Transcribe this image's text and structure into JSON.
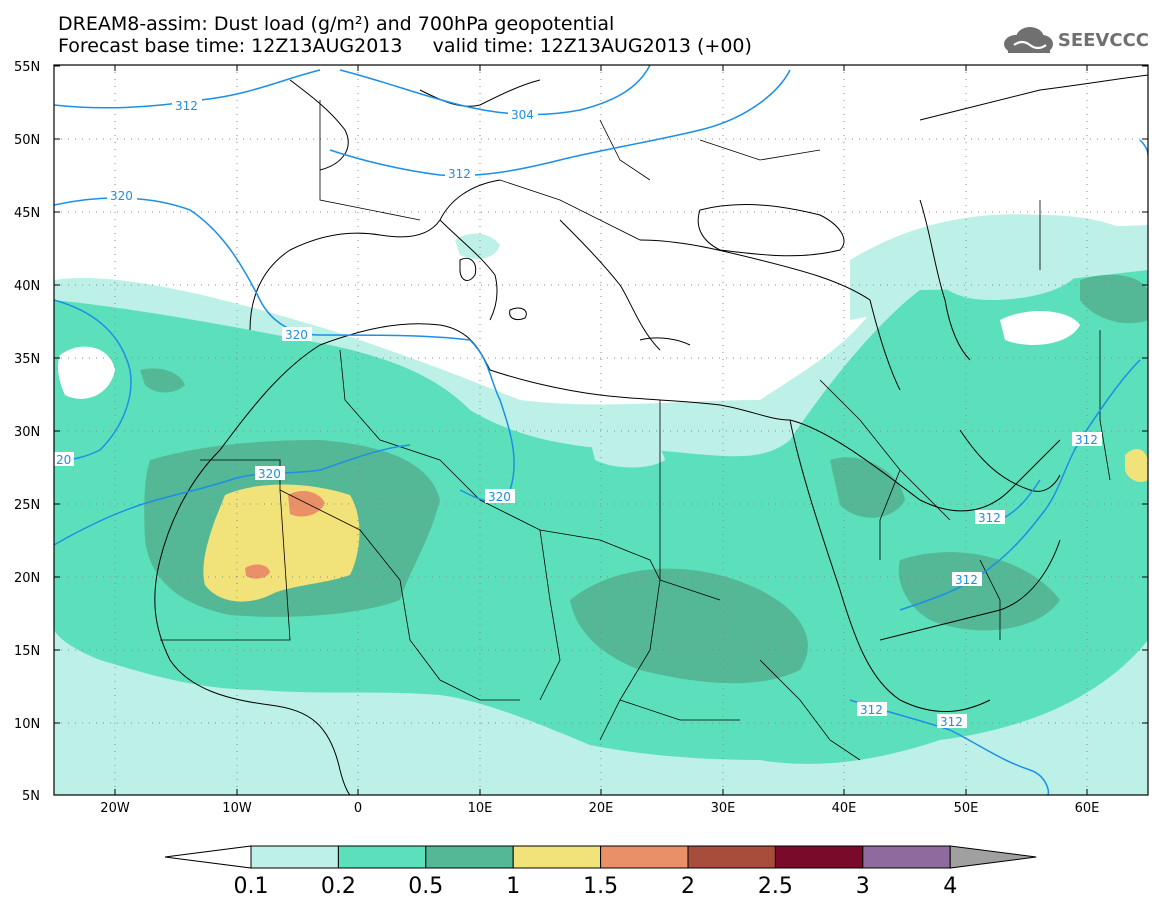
{
  "title": {
    "line1": "DREAM8-assim: Dust load (g/m²) and 700hPa geopotential",
    "line2": "Forecast base time: 12Z13AUG2013     valid time: 12Z13AUG2013 (+00)"
  },
  "logo": {
    "text": "SEEVCCC",
    "icon": "cloud-logo-icon"
  },
  "map": {
    "lon_range": [
      -25,
      65
    ],
    "lat_range": [
      5,
      55
    ],
    "lat_ticks": [
      "55N",
      "50N",
      "45N",
      "40N",
      "35N",
      "30N",
      "25N",
      "20N",
      "15N",
      "10N",
      "5N"
    ],
    "lon_ticks": [
      "20W",
      "10W",
      "0",
      "10E",
      "20E",
      "30E",
      "40E",
      "50E",
      "60E"
    ],
    "contour_labels": [
      "312",
      "304",
      "312",
      "320",
      "320",
      "320",
      "320",
      "20",
      "312",
      "312",
      "312",
      "312",
      "312"
    ]
  },
  "colorbar": {
    "labels": [
      "0.1",
      "0.2",
      "0.5",
      "1",
      "1.5",
      "2",
      "2.5",
      "3",
      "4"
    ],
    "colors": [
      "#bdf0e6",
      "#5ce0bb",
      "#54b896",
      "#f2e27a",
      "#ea9068",
      "#a84c3c",
      "#7a0a2a",
      "#8e6a9e",
      "#a0a0a0"
    ]
  },
  "colors": {
    "contour": "#1c8fe6",
    "dust_01": "#bdf0e6",
    "dust_02": "#5ce0bb",
    "dust_05": "#54b896",
    "dust_1": "#f2e27a",
    "dust_15": "#ea9068",
    "border": "#000000"
  }
}
